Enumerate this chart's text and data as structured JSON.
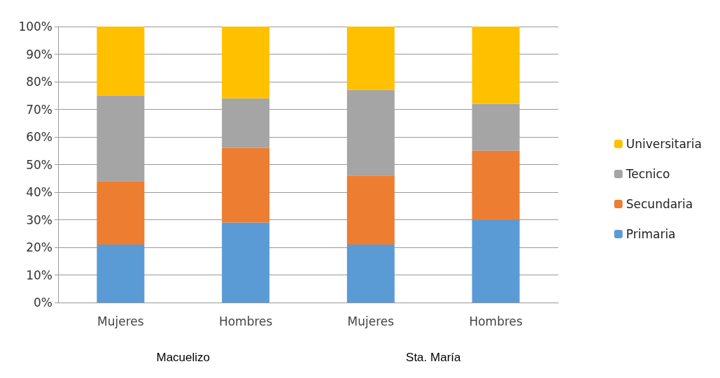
{
  "chart_data": {
    "type": "bar",
    "stacked": true,
    "categories": [
      "Mujeres",
      "Hombres",
      "Mujeres",
      "Hombres"
    ],
    "series": [
      {
        "name": "Primaria",
        "color": "#5b9bd5",
        "values": [
          21,
          29,
          21,
          30
        ]
      },
      {
        "name": "Secundaria",
        "color": "#ed7d31",
        "values": [
          23,
          27,
          25,
          25
        ]
      },
      {
        "name": "Tecnico",
        "color": "#a5a5a5",
        "values": [
          31,
          18,
          31,
          17
        ]
      },
      {
        "name": "Universitaria",
        "color": "#ffc000",
        "values": [
          25,
          26,
          23,
          28
        ]
      }
    ],
    "ylim": [
      0,
      100
    ],
    "yticks": [
      {
        "value": 0,
        "label": "0%"
      },
      {
        "value": 10,
        "label": "10%"
      },
      {
        "value": 20,
        "label": "20%"
      },
      {
        "value": 30,
        "label": "30%"
      },
      {
        "value": 40,
        "label": "40%"
      },
      {
        "value": 50,
        "label": "50%"
      },
      {
        "value": 60,
        "label": "60%"
      },
      {
        "value": 70,
        "label": "70%"
      },
      {
        "value": 80,
        "label": "80%"
      },
      {
        "value": 90,
        "label": "90%"
      },
      {
        "value": 100,
        "label": "100%"
      }
    ],
    "grid": "y",
    "legend": "right",
    "annotations": [
      "Macuelizo",
      "Sta. María"
    ]
  }
}
